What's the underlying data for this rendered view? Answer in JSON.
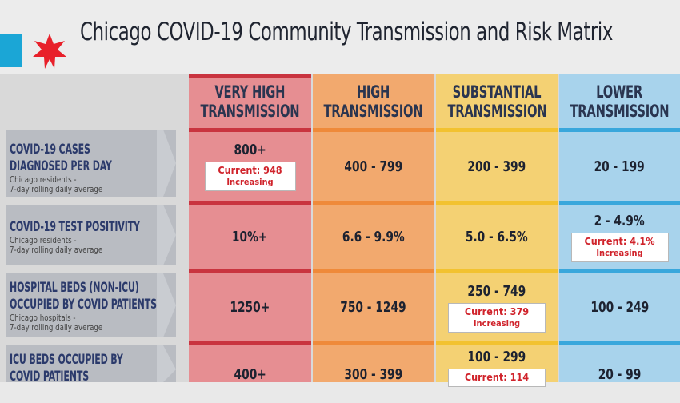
{
  "title": "Chicago COVID-19 Community Transmission and Risk Matrix",
  "colors": {
    "very_high": "#e68e92",
    "high": "#f2a96e",
    "substantial": "#f4d173",
    "lower": "#a8d3ec",
    "very_high_band": "#c9343f",
    "high_band": "#ef8a3a",
    "substantial_band": "#f2c230",
    "lower_band": "#39a7dc",
    "current_text": "#d0232b",
    "star": "#e8202a"
  },
  "columns": [
    {
      "line1": "VERY HIGH",
      "line2": "TRANSMISSION"
    },
    {
      "line1": "HIGH",
      "line2": "TRANSMISSION"
    },
    {
      "line1": "SUBSTANTIAL",
      "line2": "TRANSMISSION"
    },
    {
      "line1": "LOWER",
      "line2": "TRANSMISSION"
    }
  ],
  "rows": [
    {
      "label1": "COVID-19 CASES",
      "label2": "DIAGNOSED PER DAY",
      "sub1": "Chicago residents -",
      "sub2": "7-day rolling daily average",
      "values": [
        "800+",
        "400 - 799",
        "200 - 399",
        "20 - 199"
      ],
      "current": {
        "col": 0,
        "text": "Current: 948",
        "trend": "Increasing"
      }
    },
    {
      "label1": "COVID-19 TEST POSITIVITY",
      "label2": "",
      "sub1": "Chicago residents -",
      "sub2": "7-day rolling daily average",
      "values": [
        "10%+",
        "6.6 - 9.9%",
        "5.0 - 6.5%",
        "2 - 4.9%"
      ],
      "current": {
        "col": 3,
        "text": "Current: 4.1%",
        "trend": "Increasing"
      }
    },
    {
      "label1": "HOSPITAL BEDS (NON-ICU)",
      "label2": "OCCUPIED BY COVID PATIENTS",
      "sub1": "Chicago hospitals -",
      "sub2": "7-day rolling daily average",
      "values": [
        "1250+",
        "750 - 1249",
        "250 - 749",
        "100 - 249"
      ],
      "current": {
        "col": 2,
        "text": "Current: 379",
        "trend": "Increasing"
      }
    },
    {
      "label1": "ICU BEDS OCCUPIED BY",
      "label2": "COVID PATIENTS",
      "sub1": "",
      "sub2": "",
      "values": [
        "400+",
        "300 - 399",
        "100 - 299",
        "20 - 99"
      ],
      "current": {
        "col": 2,
        "text": "Current: 114",
        "trend": ""
      }
    }
  ]
}
